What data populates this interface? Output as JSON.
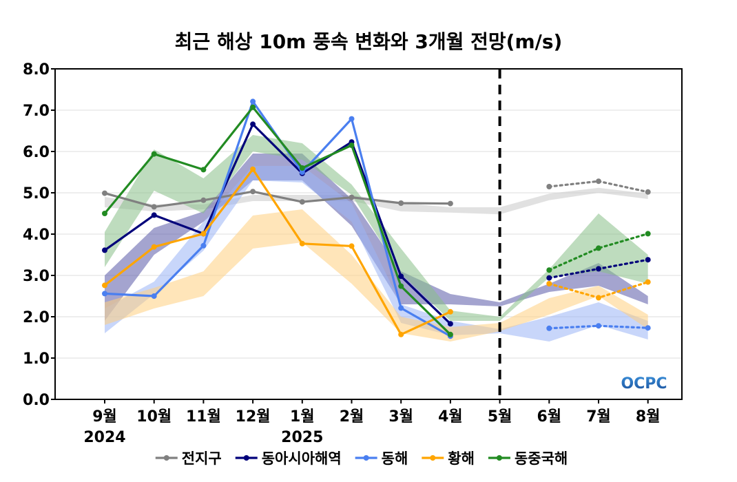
{
  "chart_data": {
    "type": "line",
    "title": "최근 해상 10m 풍속 변화와 3개월 전망(m/s)",
    "xlabel": "",
    "ylabel": "",
    "ylim": [
      0,
      8
    ],
    "yticks": [
      "0.0",
      "1.0",
      "2.0",
      "3.0",
      "4.0",
      "5.0",
      "6.0",
      "7.0",
      "8.0"
    ],
    "categories": [
      "9월",
      "10월",
      "11월",
      "12월",
      "1월",
      "2월",
      "3월",
      "4월",
      "5월",
      "6월",
      "7월",
      "8월"
    ],
    "year_labels": [
      {
        "category": "9월",
        "text": "2024"
      },
      {
        "category": "1월",
        "text": "2025"
      }
    ],
    "forecast_divider_after": "5월",
    "grid": true,
    "legend_position": "bottom",
    "series": [
      {
        "name": "전지구",
        "color": "#808080",
        "band_color": "#c8c8c8",
        "observed": [
          4.99,
          4.66,
          4.82,
          5.03,
          4.78,
          4.89,
          4.75,
          4.74,
          null,
          null,
          null,
          null
        ],
        "forecast": [
          null,
          null,
          null,
          null,
          null,
          null,
          null,
          null,
          null,
          5.15,
          5.28,
          5.02
        ],
        "band_lower": [
          4.65,
          4.55,
          4.6,
          4.8,
          4.8,
          4.8,
          4.55,
          4.52,
          4.48,
          4.82,
          5.0,
          4.85
        ],
        "band_upper": [
          4.9,
          4.72,
          4.72,
          4.95,
          4.95,
          4.95,
          4.75,
          4.65,
          4.65,
          4.98,
          5.12,
          4.98
        ]
      },
      {
        "name": "동아시아해역",
        "color": "#00007a",
        "band_color": "#5a5aa8",
        "observed": [
          3.61,
          4.46,
          4.01,
          6.66,
          5.47,
          6.23,
          2.98,
          1.83,
          null,
          null,
          null,
          null
        ],
        "forecast": [
          null,
          null,
          null,
          null,
          null,
          null,
          null,
          null,
          null,
          2.94,
          3.16,
          3.38
        ],
        "band_lower": [
          1.9,
          3.5,
          4.3,
          5.3,
          5.3,
          4.2,
          2.3,
          2.3,
          2.25,
          2.6,
          2.75,
          2.3
        ],
        "band_upper": [
          3.0,
          4.15,
          4.55,
          5.95,
          5.95,
          4.85,
          3.1,
          2.55,
          2.35,
          2.8,
          3.3,
          2.5
        ]
      },
      {
        "name": "동해",
        "color": "#4a7ff0",
        "band_color": "#9bb4f5",
        "observed": [
          2.56,
          2.5,
          3.72,
          7.21,
          5.5,
          6.79,
          2.21,
          1.53,
          null,
          null,
          null,
          null
        ],
        "forecast": [
          null,
          null,
          null,
          null,
          null,
          null,
          null,
          null,
          null,
          1.72,
          1.78,
          1.73
        ],
        "band_lower": [
          1.6,
          2.55,
          3.6,
          5.3,
          5.25,
          4.3,
          1.85,
          1.55,
          1.6,
          1.4,
          1.8,
          1.45
        ],
        "band_upper": [
          2.2,
          2.85,
          4.3,
          5.65,
          5.65,
          4.75,
          2.3,
          1.9,
          1.7,
          2.0,
          2.35,
          1.9
        ]
      },
      {
        "name": "황해",
        "color": "#ffa500",
        "band_color": "#ffd080",
        "observed": [
          2.76,
          3.69,
          4.01,
          5.57,
          3.77,
          3.71,
          1.57,
          2.12,
          null,
          null,
          null,
          null
        ],
        "forecast": [
          null,
          null,
          null,
          null,
          null,
          null,
          null,
          null,
          null,
          2.8,
          2.46,
          2.84
        ],
        "band_lower": [
          1.8,
          2.2,
          2.5,
          3.65,
          3.8,
          2.8,
          1.6,
          1.4,
          1.65,
          2.05,
          2.5,
          1.7
        ],
        "band_upper": [
          2.35,
          2.7,
          3.1,
          4.45,
          4.6,
          3.5,
          2.0,
          1.75,
          1.85,
          2.45,
          2.75,
          2.05
        ]
      },
      {
        "name": "동중국해",
        "color": "#228b22",
        "band_color": "#88c088",
        "observed": [
          4.5,
          5.94,
          5.56,
          7.07,
          5.6,
          6.15,
          2.74,
          1.57,
          null,
          null,
          null,
          null
        ],
        "forecast": [
          null,
          null,
          null,
          null,
          null,
          null,
          null,
          null,
          null,
          3.13,
          3.66,
          4.01
        ],
        "band_lower": [
          3.2,
          5.05,
          4.5,
          6.0,
          5.8,
          4.95,
          3.05,
          1.9,
          1.9,
          2.95,
          3.1,
          2.8
        ],
        "band_upper": [
          4.05,
          6.05,
          5.35,
          6.4,
          6.2,
          5.2,
          3.65,
          2.15,
          2.0,
          3.15,
          4.5,
          3.5
        ]
      }
    ]
  },
  "logo": {
    "text": "OCPC"
  },
  "colors": {
    "grid": "#dddddd",
    "divider": "#000000",
    "logo_start": "#3a8ed8",
    "logo_end": "#1a4f9a"
  }
}
